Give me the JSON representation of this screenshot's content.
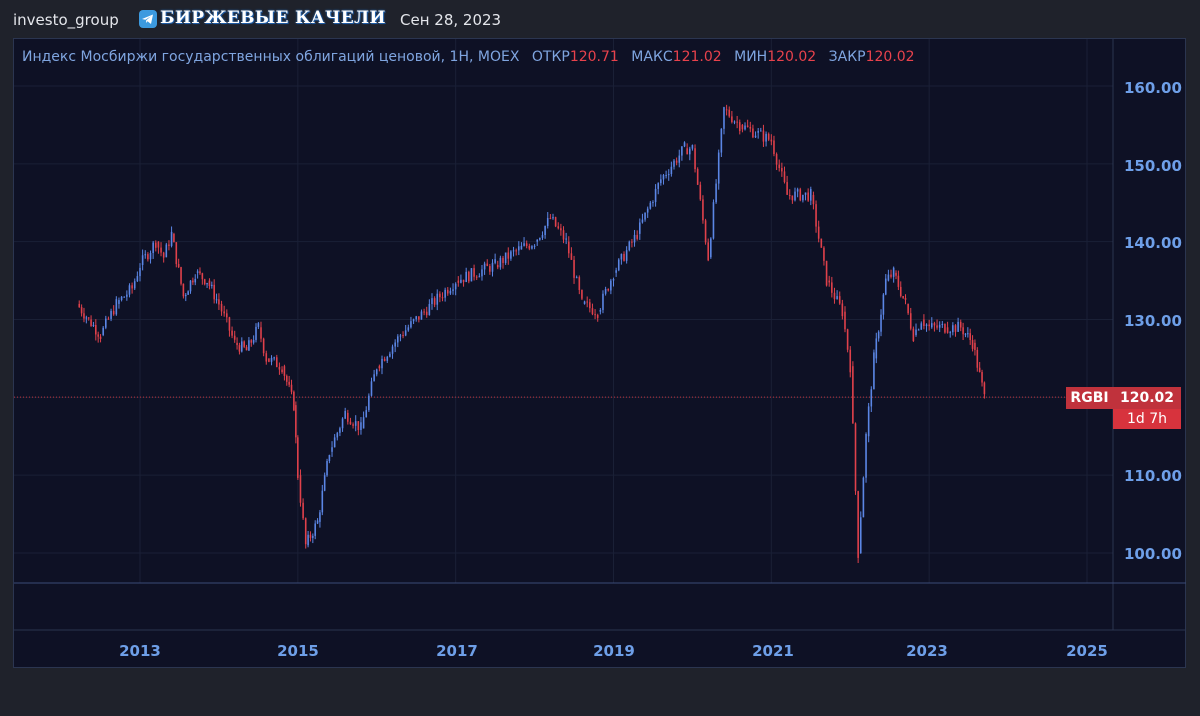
{
  "header": {
    "username": "investo_group",
    "brand": "БИРЖЕВЫЕ КАЧЕЛИ",
    "date": "Сен 28, 2023"
  },
  "legend": {
    "title": "Индекс Мосбиржи государственных облигаций ценовой, 1Н, MOEX",
    "open_label": "ОТКР",
    "open_value": "120.71",
    "high_label": "МАКС",
    "high_value": "121.02",
    "low_label": "МИН",
    "low_value": "120.02",
    "close_label": "ЗАКР",
    "close_value": "120.02"
  },
  "price_tag": {
    "ticker": "RGBI",
    "price": "120.02",
    "countdown": "1d 7h"
  },
  "colors": {
    "up": "#5b86e5",
    "down": "#e0414b",
    "axis_text": "#6e9fe8",
    "panel_bg": "#0e1125"
  },
  "chart_data": {
    "type": "line",
    "title": "Индекс Мосбиржи государственных облигаций ценовой, 1Н, MOEX",
    "y_ticks": [
      "160.00",
      "150.00",
      "140.00",
      "130.00",
      "110.00",
      "100.00"
    ],
    "x_ticks": [
      "2013",
      "2015",
      "2017",
      "2019",
      "2021",
      "2023",
      "2025"
    ],
    "ylim": [
      96,
      163
    ],
    "xlim": [
      2012.0,
      2025.2
    ],
    "last_price_line": 120.02,
    "series": [
      {
        "name": "RGBI",
        "x": [
          2012.2,
          2012.35,
          2012.5,
          2012.7,
          2012.9,
          2013.0,
          2013.2,
          2013.3,
          2013.4,
          2013.55,
          2013.7,
          2013.85,
          2014.0,
          2014.2,
          2014.35,
          2014.5,
          2014.6,
          2014.8,
          2014.95,
          2015.0,
          2015.1,
          2015.25,
          2015.4,
          2015.6,
          2015.8,
          2016.0,
          2016.3,
          2016.6,
          2017.0,
          2017.5,
          2017.8,
          2018.0,
          2018.2,
          2018.4,
          2018.6,
          2018.8,
          2019.0,
          2019.3,
          2019.6,
          2019.9,
          2020.0,
          2020.2,
          2020.4,
          2020.6,
          2020.8,
          2021.0,
          2021.2,
          2021.5,
          2021.7,
          2021.9,
          2022.0,
          2022.1,
          2022.2,
          2022.3,
          2022.45,
          2022.55,
          2022.7,
          2022.8,
          2022.9,
          2023.0,
          2023.2,
          2023.4,
          2023.55,
          2023.7
        ],
        "values": [
          132,
          130,
          128,
          132,
          134,
          137,
          140,
          138,
          141,
          133,
          136,
          135,
          132,
          127,
          126,
          129,
          125,
          124,
          119,
          110,
          101,
          104,
          113,
          118,
          116,
          124,
          128,
          131,
          135,
          137,
          139,
          140,
          143,
          140,
          132,
          131,
          136,
          141,
          148,
          152,
          152,
          138,
          157,
          155,
          154,
          153,
          146,
          146,
          135,
          131,
          124,
          100,
          115,
          125,
          135,
          136,
          132,
          128,
          130,
          129,
          129,
          129,
          127,
          120.02
        ]
      }
    ]
  }
}
